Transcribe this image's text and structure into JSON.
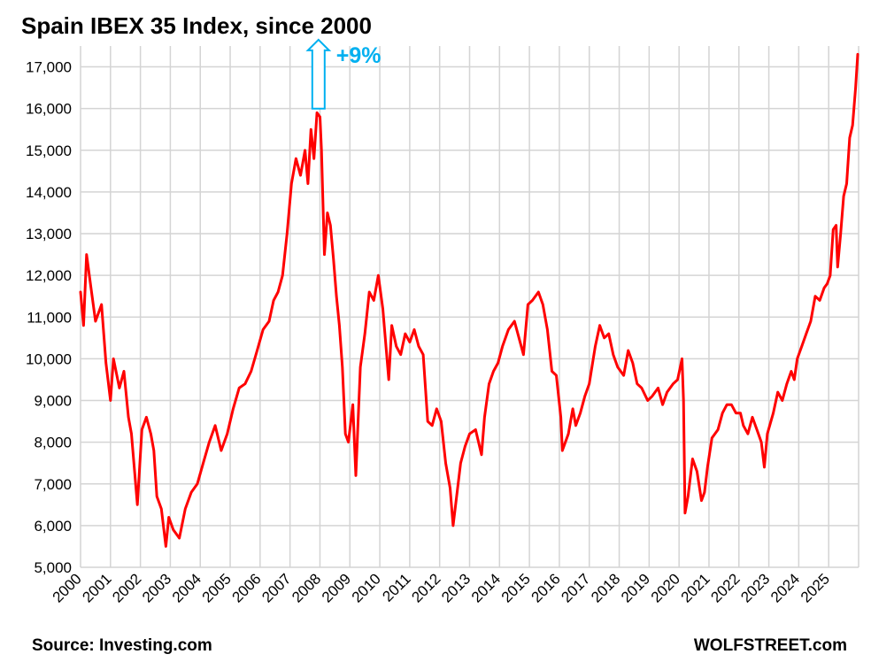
{
  "chart_data": {
    "type": "line",
    "title": "Spain IBEX 35 Index, since 2000",
    "xlabel": "",
    "ylabel": "",
    "ylim": [
      5000,
      17500
    ],
    "xlim": [
      2000,
      2026
    ],
    "y_ticks": [
      "5,000",
      "6,000",
      "7,000",
      "8,000",
      "9,000",
      "10,000",
      "11,000",
      "12,000",
      "13,000",
      "14,000",
      "15,000",
      "16,000",
      "17,000"
    ],
    "x_ticks": [
      "2000",
      "2001",
      "2002",
      "2003",
      "2004",
      "2005",
      "2006",
      "2007",
      "2008",
      "2009",
      "2010",
      "2011",
      "2012",
      "2013",
      "2014",
      "2015",
      "2016",
      "2017",
      "2018",
      "2019",
      "2020",
      "2021",
      "2022",
      "2023",
      "2024",
      "2025"
    ],
    "grid": true,
    "legend": "none",
    "series": [
      {
        "color": "#ff0000",
        "x": [
          2000.0,
          2000.1,
          2000.2,
          2000.35,
          2000.5,
          2000.7,
          2000.85,
          2001.0,
          2001.1,
          2001.3,
          2001.45,
          2001.6,
          2001.7,
          2001.9,
          2002.05,
          2002.2,
          2002.35,
          2002.45,
          2002.55,
          2002.7,
          2002.85,
          2002.95,
          2003.1,
          2003.3,
          2003.5,
          2003.7,
          2003.9,
          2004.1,
          2004.3,
          2004.5,
          2004.7,
          2004.9,
          2005.1,
          2005.3,
          2005.5,
          2005.7,
          2005.9,
          2006.1,
          2006.3,
          2006.45,
          2006.6,
          2006.75,
          2006.9,
          2007.05,
          2007.2,
          2007.35,
          2007.5,
          2007.6,
          2007.7,
          2007.8,
          2007.9,
          2008.0,
          2008.05,
          2008.15,
          2008.25,
          2008.35,
          2008.45,
          2008.55,
          2008.65,
          2008.75,
          2008.85,
          2008.95,
          2009.1,
          2009.2,
          2009.35,
          2009.5,
          2009.65,
          2009.8,
          2009.95,
          2010.1,
          2010.3,
          2010.4,
          2010.55,
          2010.7,
          2010.85,
          2011.0,
          2011.15,
          2011.3,
          2011.45,
          2011.6,
          2011.75,
          2011.9,
          2012.05,
          2012.2,
          2012.35,
          2012.45,
          2012.55,
          2012.7,
          2012.85,
          2013.0,
          2013.2,
          2013.4,
          2013.5,
          2013.65,
          2013.8,
          2013.95,
          2014.1,
          2014.3,
          2014.5,
          2014.65,
          2014.8,
          2014.95,
          2015.1,
          2015.3,
          2015.45,
          2015.6,
          2015.75,
          2015.9,
          2016.05,
          2016.1,
          2016.3,
          2016.45,
          2016.55,
          2016.7,
          2016.85,
          2017.0,
          2017.2,
          2017.35,
          2017.5,
          2017.65,
          2017.8,
          2017.95,
          2018.15,
          2018.3,
          2018.45,
          2018.6,
          2018.75,
          2018.95,
          2019.1,
          2019.3,
          2019.45,
          2019.6,
          2019.8,
          2019.95,
          2020.1,
          2020.15,
          2020.2,
          2020.3,
          2020.45,
          2020.6,
          2020.75,
          2020.85,
          2020.95,
          2021.1,
          2021.3,
          2021.45,
          2021.6,
          2021.75,
          2021.9,
          2022.05,
          2022.15,
          2022.3,
          2022.45,
          2022.6,
          2022.75,
          2022.85,
          2022.95,
          2023.15,
          2023.3,
          2023.45,
          2023.6,
          2023.75,
          2023.85,
          2023.95,
          2024.1,
          2024.25,
          2024.4,
          2024.55,
          2024.7,
          2024.85,
          2024.95,
          2025.05,
          2025.15,
          2025.25,
          2025.3,
          2025.4,
          2025.5,
          2025.6,
          2025.7,
          2025.8,
          2025.9,
          2025.97
        ],
        "values": [
          11600,
          10800,
          12500,
          11700,
          10900,
          11300,
          9900,
          9000,
          10000,
          9300,
          9700,
          8600,
          8200,
          6500,
          8300,
          8600,
          8200,
          7800,
          6700,
          6400,
          5500,
          6200,
          5900,
          5700,
          6400,
          6800,
          7000,
          7500,
          8000,
          8400,
          7800,
          8200,
          8800,
          9300,
          9400,
          9700,
          10200,
          10700,
          10900,
          11400,
          11600,
          12000,
          13000,
          14200,
          14800,
          14400,
          15000,
          14200,
          15500,
          14800,
          15900,
          15800,
          15000,
          12500,
          13500,
          13200,
          12400,
          11500,
          10800,
          9800,
          8200,
          8000,
          8900,
          7200,
          9800,
          10600,
          11600,
          11400,
          12000,
          11200,
          9500,
          10800,
          10300,
          10100,
          10600,
          10400,
          10700,
          10300,
          10100,
          8500,
          8400,
          8800,
          8500,
          7500,
          6900,
          6000,
          6600,
          7500,
          7900,
          8200,
          8300,
          7700,
          8600,
          9400,
          9700,
          9900,
          10300,
          10700,
          10900,
          10500,
          10100,
          11300,
          11400,
          11600,
          11300,
          10700,
          9700,
          9600,
          8600,
          7800,
          8200,
          8800,
          8400,
          8700,
          9100,
          9400,
          10300,
          10800,
          10500,
          10600,
          10100,
          9800,
          9600,
          10200,
          9900,
          9400,
          9300,
          9000,
          9100,
          9300,
          8900,
          9200,
          9400,
          9500,
          10000,
          9000,
          6300,
          6700,
          7600,
          7300,
          6600,
          6800,
          7400,
          8100,
          8300,
          8700,
          8900,
          8900,
          8700,
          8700,
          8400,
          8200,
          8600,
          8300,
          8000,
          7400,
          8200,
          8700,
          9200,
          9000,
          9400,
          9700,
          9500,
          10000,
          10300,
          10600,
          10900,
          11500,
          11400,
          11700,
          11800,
          12000,
          13100,
          13200,
          12200,
          13000,
          13900,
          14200,
          15300,
          15600,
          16500,
          17300
        ]
      }
    ],
    "annotations": [
      {
        "text": "+9%",
        "color": "#00b0f0",
        "arrow": "up",
        "x": 2007.95,
        "y": 16000
      }
    ]
  },
  "footer": {
    "source": "Source: Investing.com",
    "brand": "WOLFSTREET.com"
  }
}
